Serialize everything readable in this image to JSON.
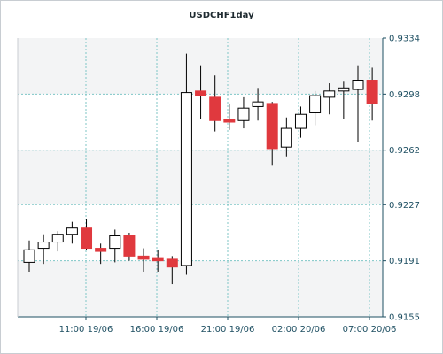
{
  "chart_data": {
    "type": "candlestick",
    "title": "USDCHF1day",
    "y_ticks": [
      "0.9334",
      "0.9298",
      "0.9262",
      "0.9227",
      "0.9191",
      "0.9155"
    ],
    "ylim": [
      0.9155,
      0.9334
    ],
    "x_ticks": [
      "11:00 19/06",
      "16:00 19/06",
      "21:00 19/06",
      "02:00 20/06",
      "07:00 20/06"
    ],
    "grid": true,
    "colors": {
      "up": "#ffffff",
      "down": "#e0393e",
      "wick": "#000000",
      "grid": "#7fc6c6"
    },
    "candles": [
      {
        "o": 0.919,
        "h": 0.9204,
        "l": 0.9184,
        "c": 0.9198
      },
      {
        "o": 0.9199,
        "h": 0.9208,
        "l": 0.9189,
        "c": 0.9203
      },
      {
        "o": 0.9203,
        "h": 0.921,
        "l": 0.9197,
        "c": 0.9208
      },
      {
        "o": 0.9208,
        "h": 0.9216,
        "l": 0.9202,
        "c": 0.9212
      },
      {
        "o": 0.9212,
        "h": 0.9218,
        "l": 0.9198,
        "c": 0.9199
      },
      {
        "o": 0.9199,
        "h": 0.9202,
        "l": 0.9189,
        "c": 0.9197
      },
      {
        "o": 0.9199,
        "h": 0.9211,
        "l": 0.919,
        "c": 0.9207
      },
      {
        "o": 0.9207,
        "h": 0.9209,
        "l": 0.9191,
        "c": 0.9194
      },
      {
        "o": 0.9194,
        "h": 0.9199,
        "l": 0.9184,
        "c": 0.9192
      },
      {
        "o": 0.9193,
        "h": 0.9198,
        "l": 0.9184,
        "c": 0.9191
      },
      {
        "o": 0.9192,
        "h": 0.9194,
        "l": 0.9176,
        "c": 0.9187
      },
      {
        "o": 0.9188,
        "h": 0.9324,
        "l": 0.9182,
        "c": 0.9299
      },
      {
        "o": 0.93,
        "h": 0.9316,
        "l": 0.9282,
        "c": 0.9297
      },
      {
        "o": 0.9296,
        "h": 0.931,
        "l": 0.9274,
        "c": 0.9281
      },
      {
        "o": 0.9282,
        "h": 0.9292,
        "l": 0.9275,
        "c": 0.928
      },
      {
        "o": 0.9281,
        "h": 0.9296,
        "l": 0.9276,
        "c": 0.9289
      },
      {
        "o": 0.929,
        "h": 0.9302,
        "l": 0.9281,
        "c": 0.9293
      },
      {
        "o": 0.9292,
        "h": 0.9293,
        "l": 0.9252,
        "c": 0.9263
      },
      {
        "o": 0.9264,
        "h": 0.9283,
        "l": 0.9258,
        "c": 0.9276
      },
      {
        "o": 0.9276,
        "h": 0.929,
        "l": 0.927,
        "c": 0.9285
      },
      {
        "o": 0.9286,
        "h": 0.93,
        "l": 0.9278,
        "c": 0.9297
      },
      {
        "o": 0.9296,
        "h": 0.9305,
        "l": 0.9285,
        "c": 0.93
      },
      {
        "o": 0.93,
        "h": 0.9306,
        "l": 0.9282,
        "c": 0.9302
      },
      {
        "o": 0.9301,
        "h": 0.9316,
        "l": 0.9267,
        "c": 0.9307
      },
      {
        "o": 0.9307,
        "h": 0.9315,
        "l": 0.9281,
        "c": 0.9292
      }
    ]
  }
}
